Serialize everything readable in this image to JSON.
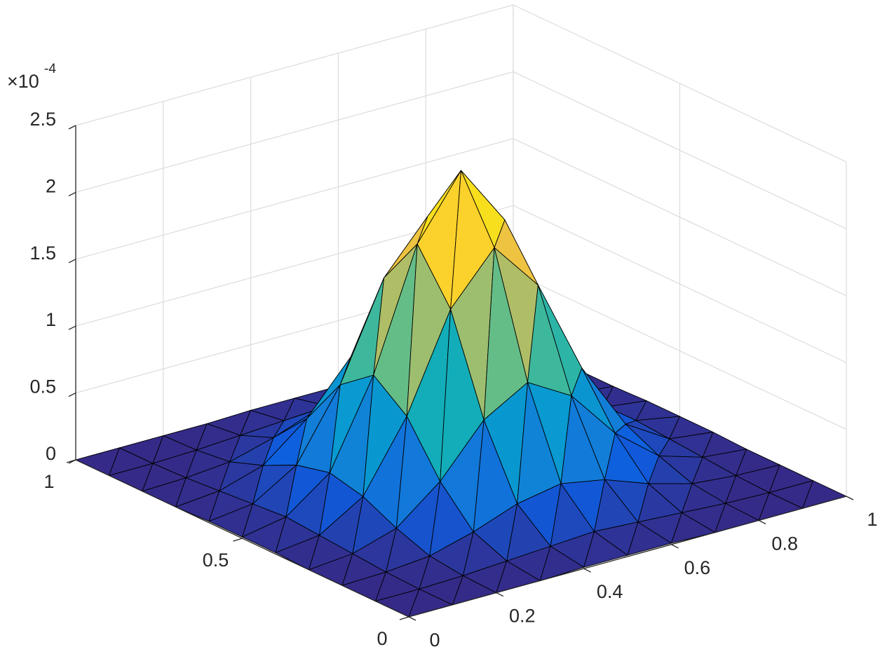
{
  "chart_data": {
    "type": "surface",
    "x": [
      0,
      0.1,
      0.2,
      0.3,
      0.4,
      0.5,
      0.6,
      0.7,
      0.8,
      0.9,
      1
    ],
    "y": [
      0,
      0.1,
      0.2,
      0.3,
      0.4,
      0.5,
      0.6,
      0.7,
      0.8,
      0.9,
      1
    ],
    "z": [
      [
        0,
        0,
        0,
        0,
        0.01,
        0.01,
        0.01,
        0,
        0,
        0,
        0
      ],
      [
        0,
        0,
        0.01,
        0.03,
        0.05,
        0.07,
        0.05,
        0.03,
        0.01,
        0,
        0
      ],
      [
        0,
        0.01,
        0.04,
        0.13,
        0.25,
        0.31,
        0.25,
        0.13,
        0.04,
        0.01,
        0
      ],
      [
        0,
        0.03,
        0.13,
        0.39,
        0.76,
        0.95,
        0.76,
        0.39,
        0.13,
        0.03,
        0
      ],
      [
        0.01,
        0.05,
        0.25,
        0.76,
        1.47,
        1.84,
        1.47,
        0.76,
        0.25,
        0.05,
        0.01
      ],
      [
        0.01,
        0.07,
        0.31,
        0.95,
        1.84,
        2.3,
        1.84,
        0.95,
        0.31,
        0.07,
        0.01
      ],
      [
        0.01,
        0.05,
        0.25,
        0.76,
        1.47,
        1.84,
        1.47,
        0.76,
        0.25,
        0.05,
        0.01
      ],
      [
        0,
        0.03,
        0.13,
        0.39,
        0.76,
        0.95,
        0.76,
        0.39,
        0.13,
        0.03,
        0
      ],
      [
        0,
        0.01,
        0.04,
        0.13,
        0.25,
        0.31,
        0.25,
        0.13,
        0.04,
        0.01,
        0
      ],
      [
        0,
        0,
        0.01,
        0.03,
        0.05,
        0.07,
        0.05,
        0.03,
        0.01,
        0,
        0
      ],
      [
        0,
        0,
        0,
        0,
        0.01,
        0.01,
        0.01,
        0,
        0,
        0,
        0
      ]
    ],
    "xlim": [
      0,
      1
    ],
    "ylim": [
      0,
      1
    ],
    "zlim": [
      0,
      2.5
    ],
    "xticks": [
      0,
      0.2,
      0.4,
      0.6,
      0.8,
      1
    ],
    "yticks": [
      0,
      0.5,
      1
    ],
    "zticks": [
      0,
      0.5,
      1,
      1.5,
      2,
      2.5
    ],
    "z_multiplier": {
      "base": "×10",
      "exponent": "-4"
    },
    "colormap": "parula",
    "edge_color": "#000000",
    "grid": true
  }
}
